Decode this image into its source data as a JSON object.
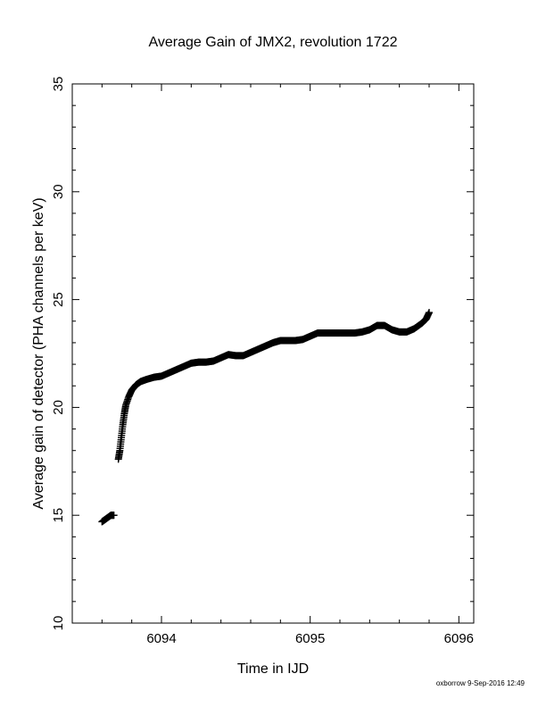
{
  "chart_data": {
    "type": "scatter",
    "title": "Average Gain of JMX2, revolution 1722",
    "xlabel": "Time in IJD",
    "ylabel": "Average gain of detector (PHA channels per keV)",
    "xlim": [
      6093.4,
      6096.1
    ],
    "ylim": [
      10,
      35
    ],
    "xticks": [
      6094,
      6095,
      6096
    ],
    "yticks": [
      10,
      15,
      20,
      25,
      30,
      35
    ],
    "marker": "plus",
    "color": "#000000",
    "grid": false,
    "series": [
      {
        "points": [
          [
            6093.6,
            14.7
          ],
          [
            6093.62,
            14.8
          ],
          [
            6093.64,
            14.9
          ],
          [
            6093.66,
            15.0
          ],
          [
            6093.68,
            15.0
          ],
          [
            6093.71,
            17.6
          ],
          [
            6093.72,
            18.0
          ],
          [
            6093.73,
            18.6
          ],
          [
            6093.74,
            19.2
          ],
          [
            6093.75,
            19.7
          ],
          [
            6093.76,
            20.1
          ],
          [
            6093.78,
            20.5
          ],
          [
            6093.8,
            20.8
          ],
          [
            6093.83,
            21.05
          ],
          [
            6093.86,
            21.2
          ],
          [
            6093.9,
            21.3
          ],
          [
            6093.95,
            21.4
          ],
          [
            6094.0,
            21.45
          ],
          [
            6094.05,
            21.6
          ],
          [
            6094.1,
            21.75
          ],
          [
            6094.15,
            21.9
          ],
          [
            6094.2,
            22.05
          ],
          [
            6094.25,
            22.1
          ],
          [
            6094.3,
            22.1
          ],
          [
            6094.35,
            22.15
          ],
          [
            6094.4,
            22.3
          ],
          [
            6094.45,
            22.45
          ],
          [
            6094.5,
            22.4
          ],
          [
            6094.55,
            22.4
          ],
          [
            6094.6,
            22.55
          ],
          [
            6094.65,
            22.7
          ],
          [
            6094.7,
            22.85
          ],
          [
            6094.75,
            23.0
          ],
          [
            6094.8,
            23.1
          ],
          [
            6094.85,
            23.1
          ],
          [
            6094.9,
            23.1
          ],
          [
            6094.95,
            23.15
          ],
          [
            6095.0,
            23.3
          ],
          [
            6095.05,
            23.45
          ],
          [
            6095.1,
            23.45
          ],
          [
            6095.15,
            23.45
          ],
          [
            6095.2,
            23.45
          ],
          [
            6095.25,
            23.45
          ],
          [
            6095.3,
            23.45
          ],
          [
            6095.35,
            23.5
          ],
          [
            6095.4,
            23.6
          ],
          [
            6095.45,
            23.8
          ],
          [
            6095.5,
            23.8
          ],
          [
            6095.55,
            23.6
          ],
          [
            6095.6,
            23.5
          ],
          [
            6095.65,
            23.5
          ],
          [
            6095.7,
            23.65
          ],
          [
            6095.75,
            23.9
          ],
          [
            6095.78,
            24.1
          ],
          [
            6095.8,
            24.4
          ]
        ]
      }
    ]
  },
  "footer": {
    "stamp": "oxborrow  9-Sep-2016 12:49"
  }
}
